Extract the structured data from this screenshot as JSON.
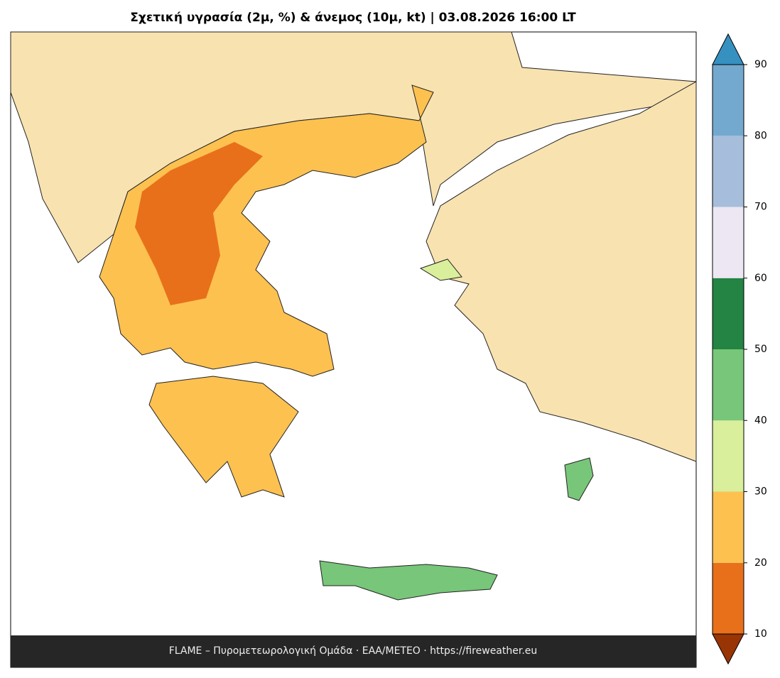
{
  "header": {
    "title": "Σχετική υγρασία (2μ, %) & άνεμος (10μ, kt)  |  03.08.2026 16:00 LT"
  },
  "footer": {
    "text": "FLAME – Πυρομετεωρολογική Ομάδα · ΕΑΑ/METEO · https://fireweather.eu"
  },
  "colorbar": {
    "levels": [
      10,
      20,
      30,
      40,
      50,
      60,
      70,
      80,
      90
    ],
    "colors": [
      "#e8701a",
      "#fdc150",
      "#d9ef9b",
      "#78c679",
      "#238443",
      "#ece7f2",
      "#a6bddb",
      "#74a9cf"
    ],
    "under_color": "#993404",
    "over_color": "#3690c0"
  }
}
